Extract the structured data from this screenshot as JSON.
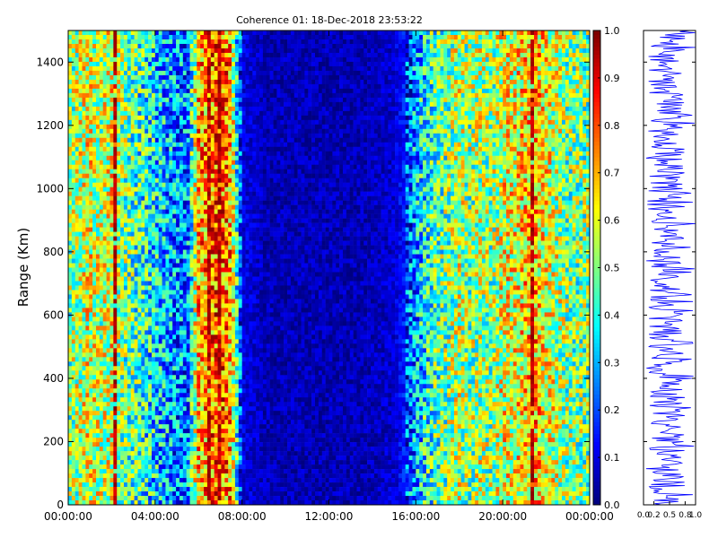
{
  "chart_data": [
    {
      "type": "heatmap",
      "title": "Coherence 01: 18-Dec-2018 23:53:22",
      "xlabel": "",
      "ylabel": "Range (Km)",
      "x_tick_labels": [
        "00:00:00",
        "04:00:00",
        "08:00:00",
        "12:00:00",
        "16:00:00",
        "20:00:00",
        "00:00:00"
      ],
      "x_range_hours": [
        0,
        24
      ],
      "ylim": [
        0,
        1500
      ],
      "y_ticks": [
        0,
        200,
        400,
        600,
        800,
        1000,
        1200,
        1400
      ],
      "colormap": "jet",
      "clim": [
        0,
        1
      ],
      "colorbar_ticks": [
        0.0,
        0.1,
        0.2,
        0.3,
        0.4,
        0.5,
        0.6,
        0.7,
        0.8,
        0.9,
        1.0
      ],
      "colorbar_tick_labels": [
        "0.0",
        "0.1",
        "0.2",
        "0.3",
        "0.4",
        "0.5",
        "0.6",
        "0.7",
        "0.8",
        "0.9",
        "1.0"
      ],
      "time_profile": {
        "hours": [
          0,
          0.5,
          1,
          1.5,
          2,
          2.5,
          3,
          3.5,
          4,
          4.5,
          5,
          5.5,
          6,
          6.5,
          7,
          7.5,
          8,
          8.5,
          9,
          9.5,
          10,
          10.5,
          11,
          11.5,
          12,
          12.5,
          13,
          13.5,
          14,
          14.5,
          15,
          15.5,
          16,
          16.5,
          17,
          17.5,
          18,
          18.5,
          19,
          19.5,
          20,
          20.5,
          21,
          21.5,
          22,
          22.5,
          23,
          23.5,
          24
        ],
        "coherence": [
          0.5,
          0.55,
          0.6,
          0.55,
          0.6,
          0.5,
          0.45,
          0.4,
          0.35,
          0.3,
          0.25,
          0.25,
          0.7,
          0.75,
          0.8,
          0.7,
          0.1,
          0.08,
          0.06,
          0.05,
          0.05,
          0.05,
          0.05,
          0.05,
          0.05,
          0.05,
          0.05,
          0.05,
          0.06,
          0.07,
          0.08,
          0.15,
          0.3,
          0.4,
          0.45,
          0.5,
          0.55,
          0.5,
          0.55,
          0.5,
          0.6,
          0.6,
          0.65,
          0.7,
          0.6,
          0.55,
          0.5,
          0.5,
          0.5
        ]
      },
      "dark_red_columns_hours": [
        2.2,
        6.5,
        6.9,
        21.4
      ]
    },
    {
      "type": "line",
      "title": "",
      "xlabel": "",
      "ylabel": "",
      "xlim": [
        0,
        1
      ],
      "ylim": [
        0,
        1500
      ],
      "x_tick_labels": [
        "0.0",
        "0.2",
        "0.5",
        "0.8",
        "1.0"
      ],
      "x_ticks": [
        0,
        0.2,
        0.5,
        0.8,
        1.0
      ],
      "series": [
        {
          "color": "#0000ff",
          "mean": 0.45,
          "spread": 0.35
        }
      ]
    }
  ]
}
